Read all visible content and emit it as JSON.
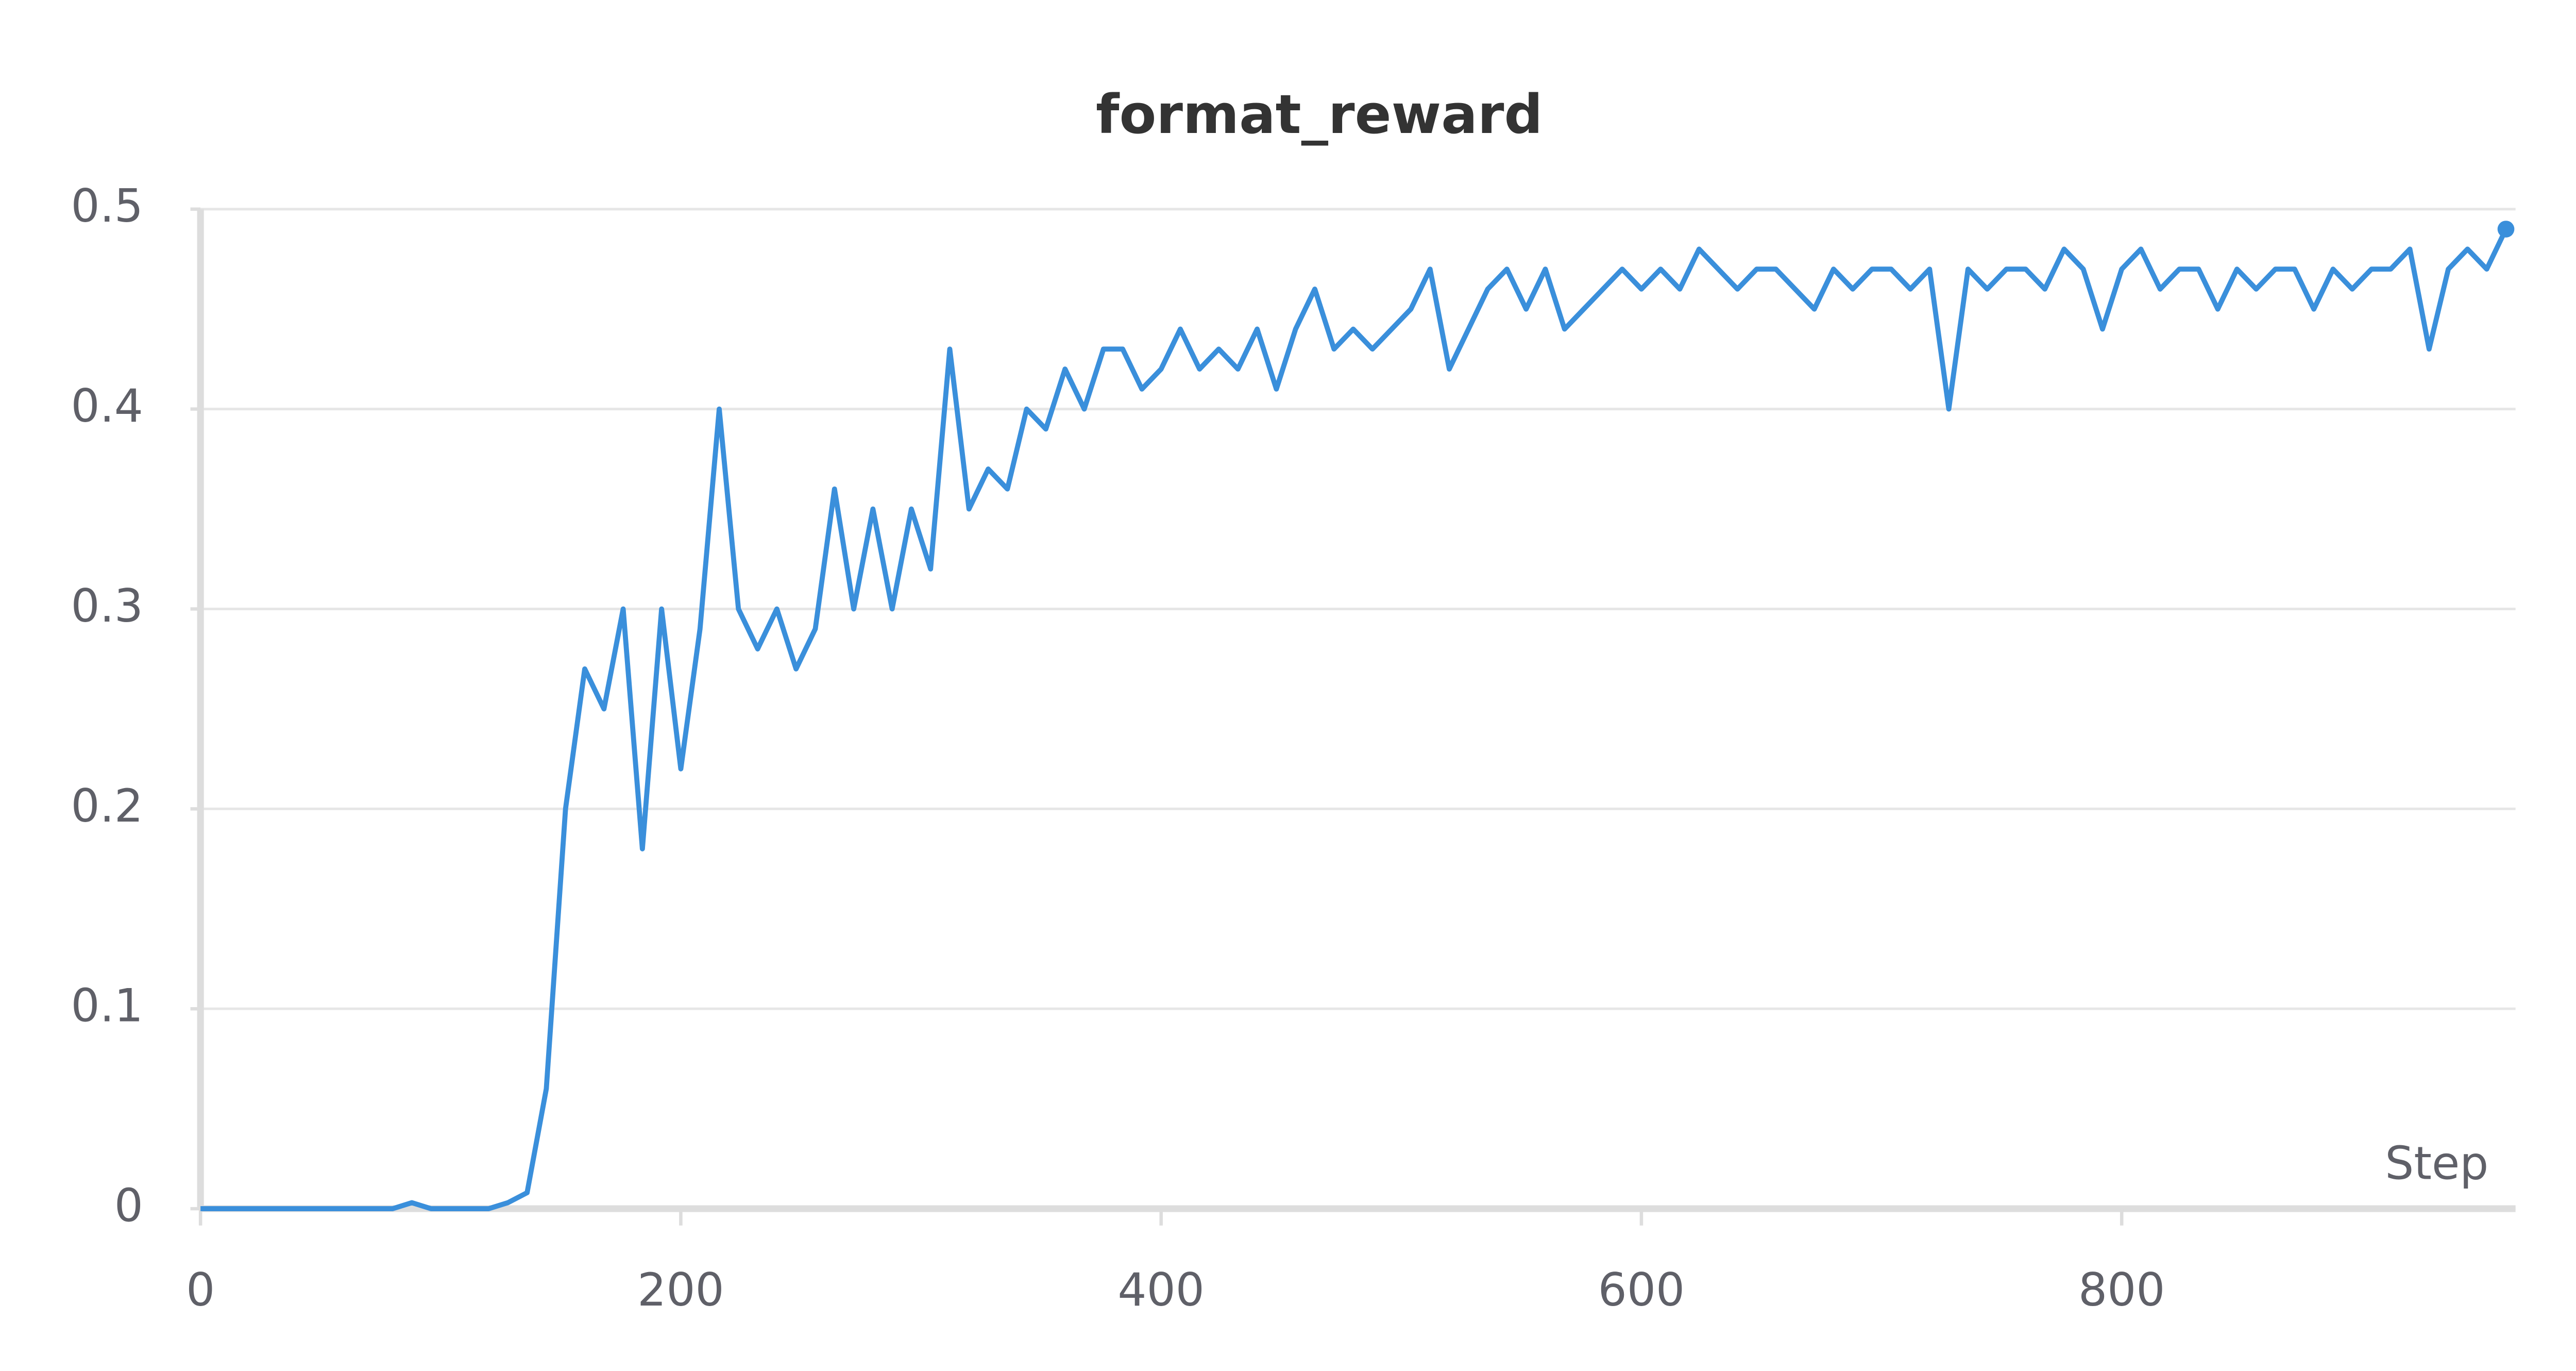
{
  "chart_data": {
    "type": "line",
    "title": "format_reward",
    "xlabel": "Step",
    "x": [
      0,
      8,
      16,
      24,
      32,
      40,
      48,
      56,
      64,
      72,
      80,
      88,
      96,
      104,
      112,
      120,
      128,
      136,
      144,
      152,
      160,
      168,
      176,
      184,
      192,
      200,
      208,
      216,
      224,
      232,
      240,
      248,
      256,
      264,
      272,
      280,
      288,
      296,
      304,
      312,
      320,
      328,
      336,
      344,
      352,
      360,
      368,
      376,
      384,
      392,
      400,
      408,
      416,
      424,
      432,
      440,
      448,
      456,
      464,
      472,
      480,
      488,
      496,
      504,
      512,
      520,
      528,
      536,
      544,
      552,
      560,
      568,
      576,
      584,
      592,
      600,
      608,
      616,
      624,
      632,
      640,
      648,
      656,
      664,
      672,
      680,
      688,
      696,
      704,
      712,
      720,
      728,
      736,
      744,
      752,
      760,
      768,
      776,
      784,
      792,
      800,
      808,
      816,
      824,
      832,
      840,
      848,
      856,
      864,
      872,
      880,
      888,
      896,
      904,
      912,
      920,
      928,
      936,
      944,
      952,
      960
    ],
    "series": [
      {
        "name": "format_reward",
        "color": "#3a8fdb",
        "values": [
          0,
          0,
          0,
          0,
          0,
          0,
          0,
          0,
          0,
          0,
          0,
          0.003,
          0,
          0,
          0,
          0,
          0.003,
          0.008,
          0.06,
          0.2,
          0.27,
          0.25,
          0.3,
          0.18,
          0.3,
          0.22,
          0.29,
          0.4,
          0.3,
          0.28,
          0.3,
          0.27,
          0.29,
          0.36,
          0.3,
          0.35,
          0.3,
          0.35,
          0.32,
          0.43,
          0.35,
          0.37,
          0.36,
          0.4,
          0.39,
          0.42,
          0.4,
          0.43,
          0.43,
          0.41,
          0.42,
          0.44,
          0.42,
          0.43,
          0.42,
          0.44,
          0.41,
          0.44,
          0.46,
          0.43,
          0.44,
          0.43,
          0.44,
          0.45,
          0.47,
          0.42,
          0.44,
          0.46,
          0.47,
          0.45,
          0.47,
          0.44,
          0.45,
          0.46,
          0.47,
          0.46,
          0.47,
          0.46,
          0.48,
          0.47,
          0.46,
          0.47,
          0.47,
          0.46,
          0.45,
          0.47,
          0.46,
          0.47,
          0.47,
          0.46,
          0.47,
          0.4,
          0.47,
          0.46,
          0.47,
          0.47,
          0.46,
          0.48,
          0.47,
          0.44,
          0.47,
          0.48,
          0.46,
          0.47,
          0.47,
          0.45,
          0.47,
          0.46,
          0.47,
          0.47,
          0.45,
          0.47,
          0.46,
          0.47,
          0.47,
          0.48,
          0.43,
          0.47,
          0.48,
          0.47,
          0.49
        ]
      }
    ],
    "xlim": [
      0,
      964
    ],
    "ylim": [
      0,
      0.5
    ],
    "xticks": [
      0,
      200,
      400,
      600,
      800
    ],
    "yticks": [
      0,
      0.1,
      0.2,
      0.3,
      0.4,
      0.5
    ],
    "grid": true
  }
}
